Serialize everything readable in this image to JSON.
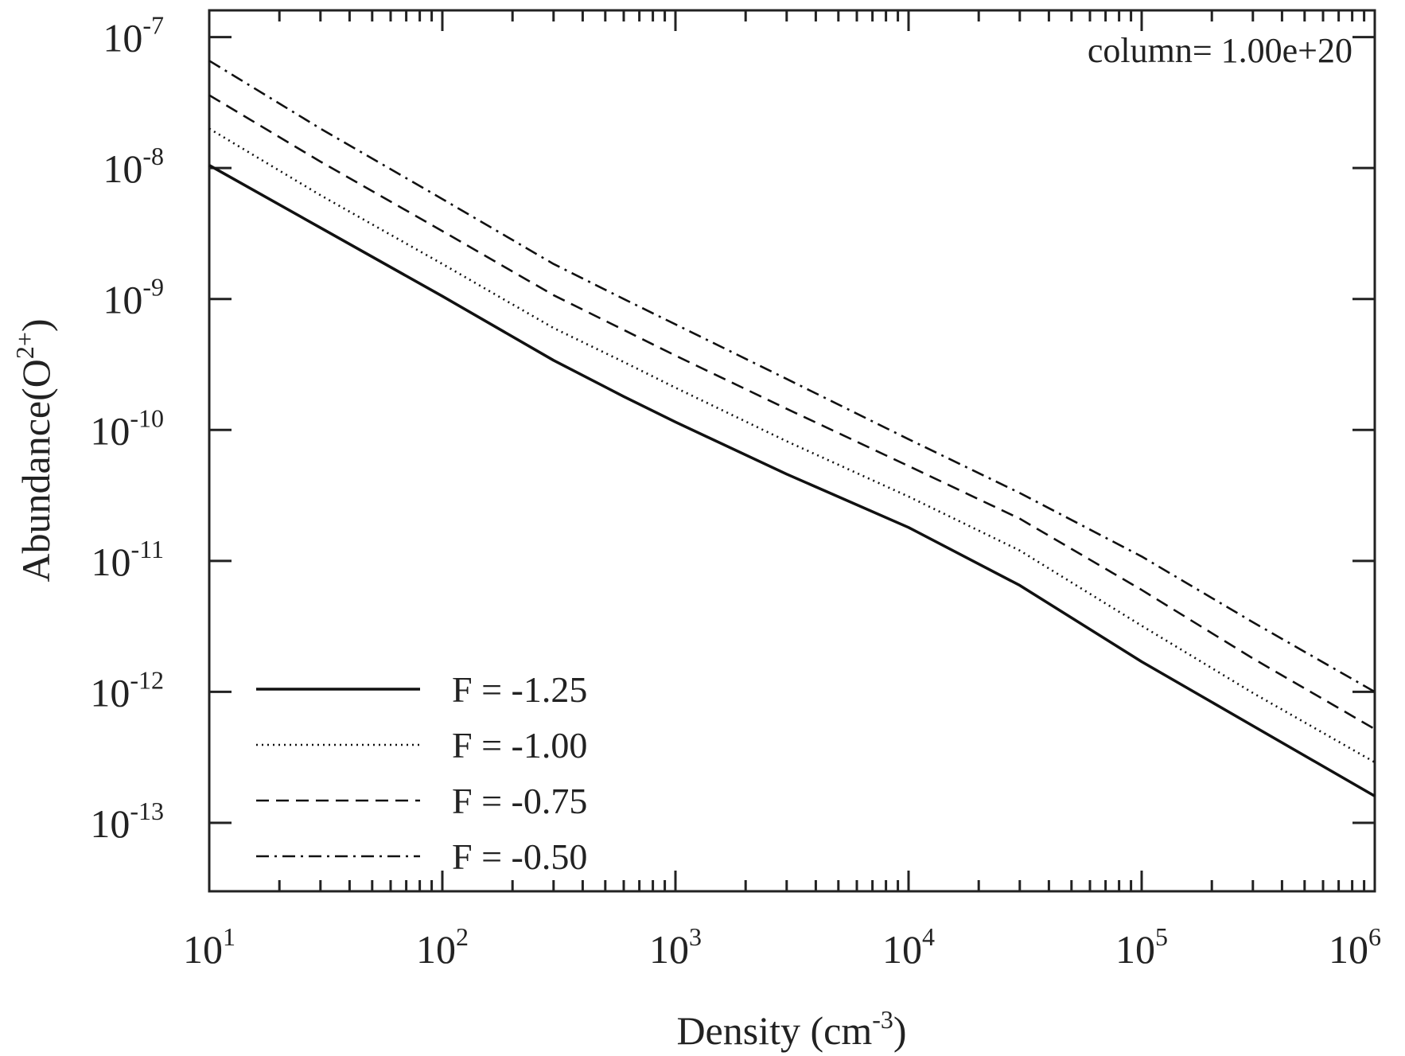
{
  "chart_data": {
    "type": "line",
    "title": "",
    "xlabel": {
      "base": "Density (cm",
      "sup": "-3",
      "close": ")"
    },
    "ylabel": {
      "base": "Abundance(O",
      "sup": "2+",
      "close": ")"
    },
    "xscale": "log",
    "yscale": "log",
    "xlim": [
      10,
      1000000
    ],
    "ylim": [
      3e-14,
      1.6e-07
    ],
    "grid": false,
    "legend_position": "bottom-left",
    "annotation": "column= 1.00e+20",
    "x_ticks": [
      {
        "value": 10,
        "base": "10",
        "exp": "1"
      },
      {
        "value": 100,
        "base": "10",
        "exp": "2"
      },
      {
        "value": 1000,
        "base": "10",
        "exp": "3"
      },
      {
        "value": 10000,
        "base": "10",
        "exp": "4"
      },
      {
        "value": 100000,
        "base": "10",
        "exp": "5"
      },
      {
        "value": 1000000,
        "base": "10",
        "exp": "6"
      }
    ],
    "y_ticks": [
      {
        "value": 1e-13,
        "base": "10",
        "exp": "-13"
      },
      {
        "value": 1e-12,
        "base": "10",
        "exp": "-12"
      },
      {
        "value": 1e-11,
        "base": "10",
        "exp": "-11"
      },
      {
        "value": 1e-10,
        "base": "10",
        "exp": "-10"
      },
      {
        "value": 1e-09,
        "base": "10",
        "exp": "-9"
      },
      {
        "value": 1e-08,
        "base": "10",
        "exp": "-8"
      },
      {
        "value": 1e-07,
        "base": "10",
        "exp": "-7"
      }
    ],
    "x": [
      10,
      30,
      100,
      300,
      600,
      1000,
      3000,
      10000,
      30000,
      100000,
      300000,
      1000000
    ],
    "series": [
      {
        "name": "F = -1.25",
        "style": "solid",
        "values": [
          1.05e-08,
          3.5e-09,
          1.05e-09,
          3.4e-10,
          1.8e-10,
          1.15e-10,
          4.6e-11,
          1.8e-11,
          6.5e-12,
          1.7e-12,
          5.5e-13,
          1.6e-13
        ]
      },
      {
        "name": "F = -1.00",
        "style": "dotted",
        "values": [
          2e-08,
          6.2e-09,
          1.85e-09,
          6e-10,
          3.3e-10,
          2.1e-10,
          8.2e-11,
          3.1e-11,
          1.2e-11,
          3.2e-12,
          9.8e-13,
          2.9e-13
        ]
      },
      {
        "name": "F = -0.75",
        "style": "dashed",
        "values": [
          3.6e-08,
          1.12e-08,
          3.3e-09,
          1.07e-09,
          5.8e-10,
          3.7e-10,
          1.45e-10,
          5.3e-11,
          2.1e-11,
          6e-12,
          1.8e-12,
          5.2e-13
        ]
      },
      {
        "name": "F = -0.50",
        "style": "dashdot",
        "values": [
          6.6e-08,
          2e-08,
          5.8e-09,
          1.85e-09,
          1e-09,
          6.4e-10,
          2.45e-10,
          8.5e-11,
          3.3e-11,
          1.08e-11,
          3.4e-12,
          1e-12
        ]
      }
    ]
  }
}
